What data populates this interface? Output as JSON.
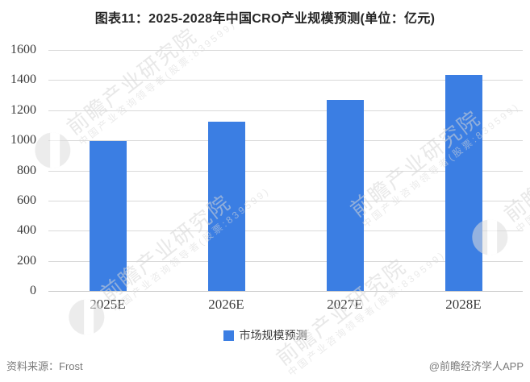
{
  "title": "图表11：2025-2028年中国CRO产业规模预测(单位：亿元)",
  "chart_data": {
    "type": "bar",
    "title": "图表11：2025-2028年中国CRO产业规模预测(单位：亿元)",
    "categories": [
      "2025E",
      "2026E",
      "2027E",
      "2028E"
    ],
    "series": [
      {
        "name": "市场规模预测",
        "values": [
          995,
          1125,
          1270,
          1435
        ]
      }
    ],
    "xlabel": "",
    "ylabel": "",
    "ylim": [
      0,
      1600
    ],
    "ytick_interval": 200,
    "grid": true,
    "legend_position": "bottom",
    "bar_color": "#3b7ee3"
  },
  "legend": {
    "label": "市场规模预测",
    "swatch_color": "#3b7ee3"
  },
  "footer": {
    "source": "资料来源：Frost",
    "credit": "@前瞻经济学人APP"
  },
  "watermark": {
    "text": "前瞻产业研究院",
    "subtext": "中国产业咨询领导者(股票:839599)"
  }
}
